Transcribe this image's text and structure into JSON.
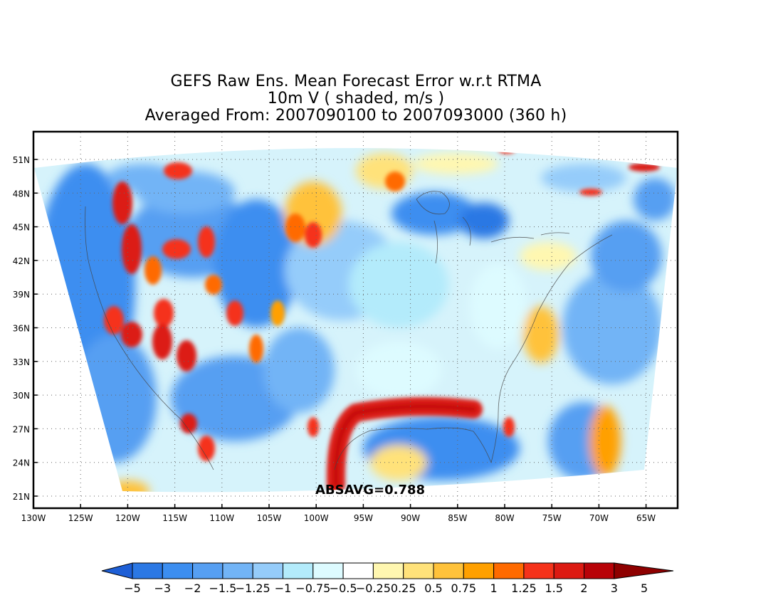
{
  "title": {
    "line1": "GEFS Raw Ens. Mean Forecast Error w.r.t RTMA",
    "line2": "10m V ( shaded, m/s )",
    "line3": "Averaged From: 2007090100 to 2007093000 (360 h)"
  },
  "annotation": "ABSAVG=0.788",
  "map": {
    "projection": "lambert-conformal",
    "region": "CONUS",
    "lon_range": [
      -130,
      -62
    ],
    "lat_range": [
      20,
      53
    ],
    "grid": true,
    "lat_labels": [
      "51N",
      "48N",
      "45N",
      "42N",
      "39N",
      "36N",
      "33N",
      "30N",
      "27N",
      "24N",
      "21N"
    ],
    "lon_labels": [
      "130W",
      "125W",
      "120W",
      "115W",
      "110W",
      "105W",
      "100W",
      "95W",
      "90W",
      "85W",
      "80W",
      "75W",
      "70W",
      "65W"
    ]
  },
  "colorbar": {
    "labels": [
      "−5",
      "−3",
      "−2",
      "−1.5",
      "−1.25",
      "−1",
      "−0.75",
      "−0.5",
      "−0.25",
      "0.25",
      "0.5",
      "0.75",
      "1",
      "1.25",
      "1.5",
      "2",
      "3",
      "5"
    ],
    "colors": [
      "#1e5fd6",
      "#2b78e4",
      "#3c8ef0",
      "#569ff2",
      "#72b4f6",
      "#95ccfa",
      "#b3ebfb",
      "#ddfbff",
      "#ffffff",
      "#fff7b0",
      "#ffe27a",
      "#ffc23a",
      "#ffa000",
      "#ff6a00",
      "#f5321a",
      "#dc1a12",
      "#b80208",
      "#8e0000"
    ]
  }
}
